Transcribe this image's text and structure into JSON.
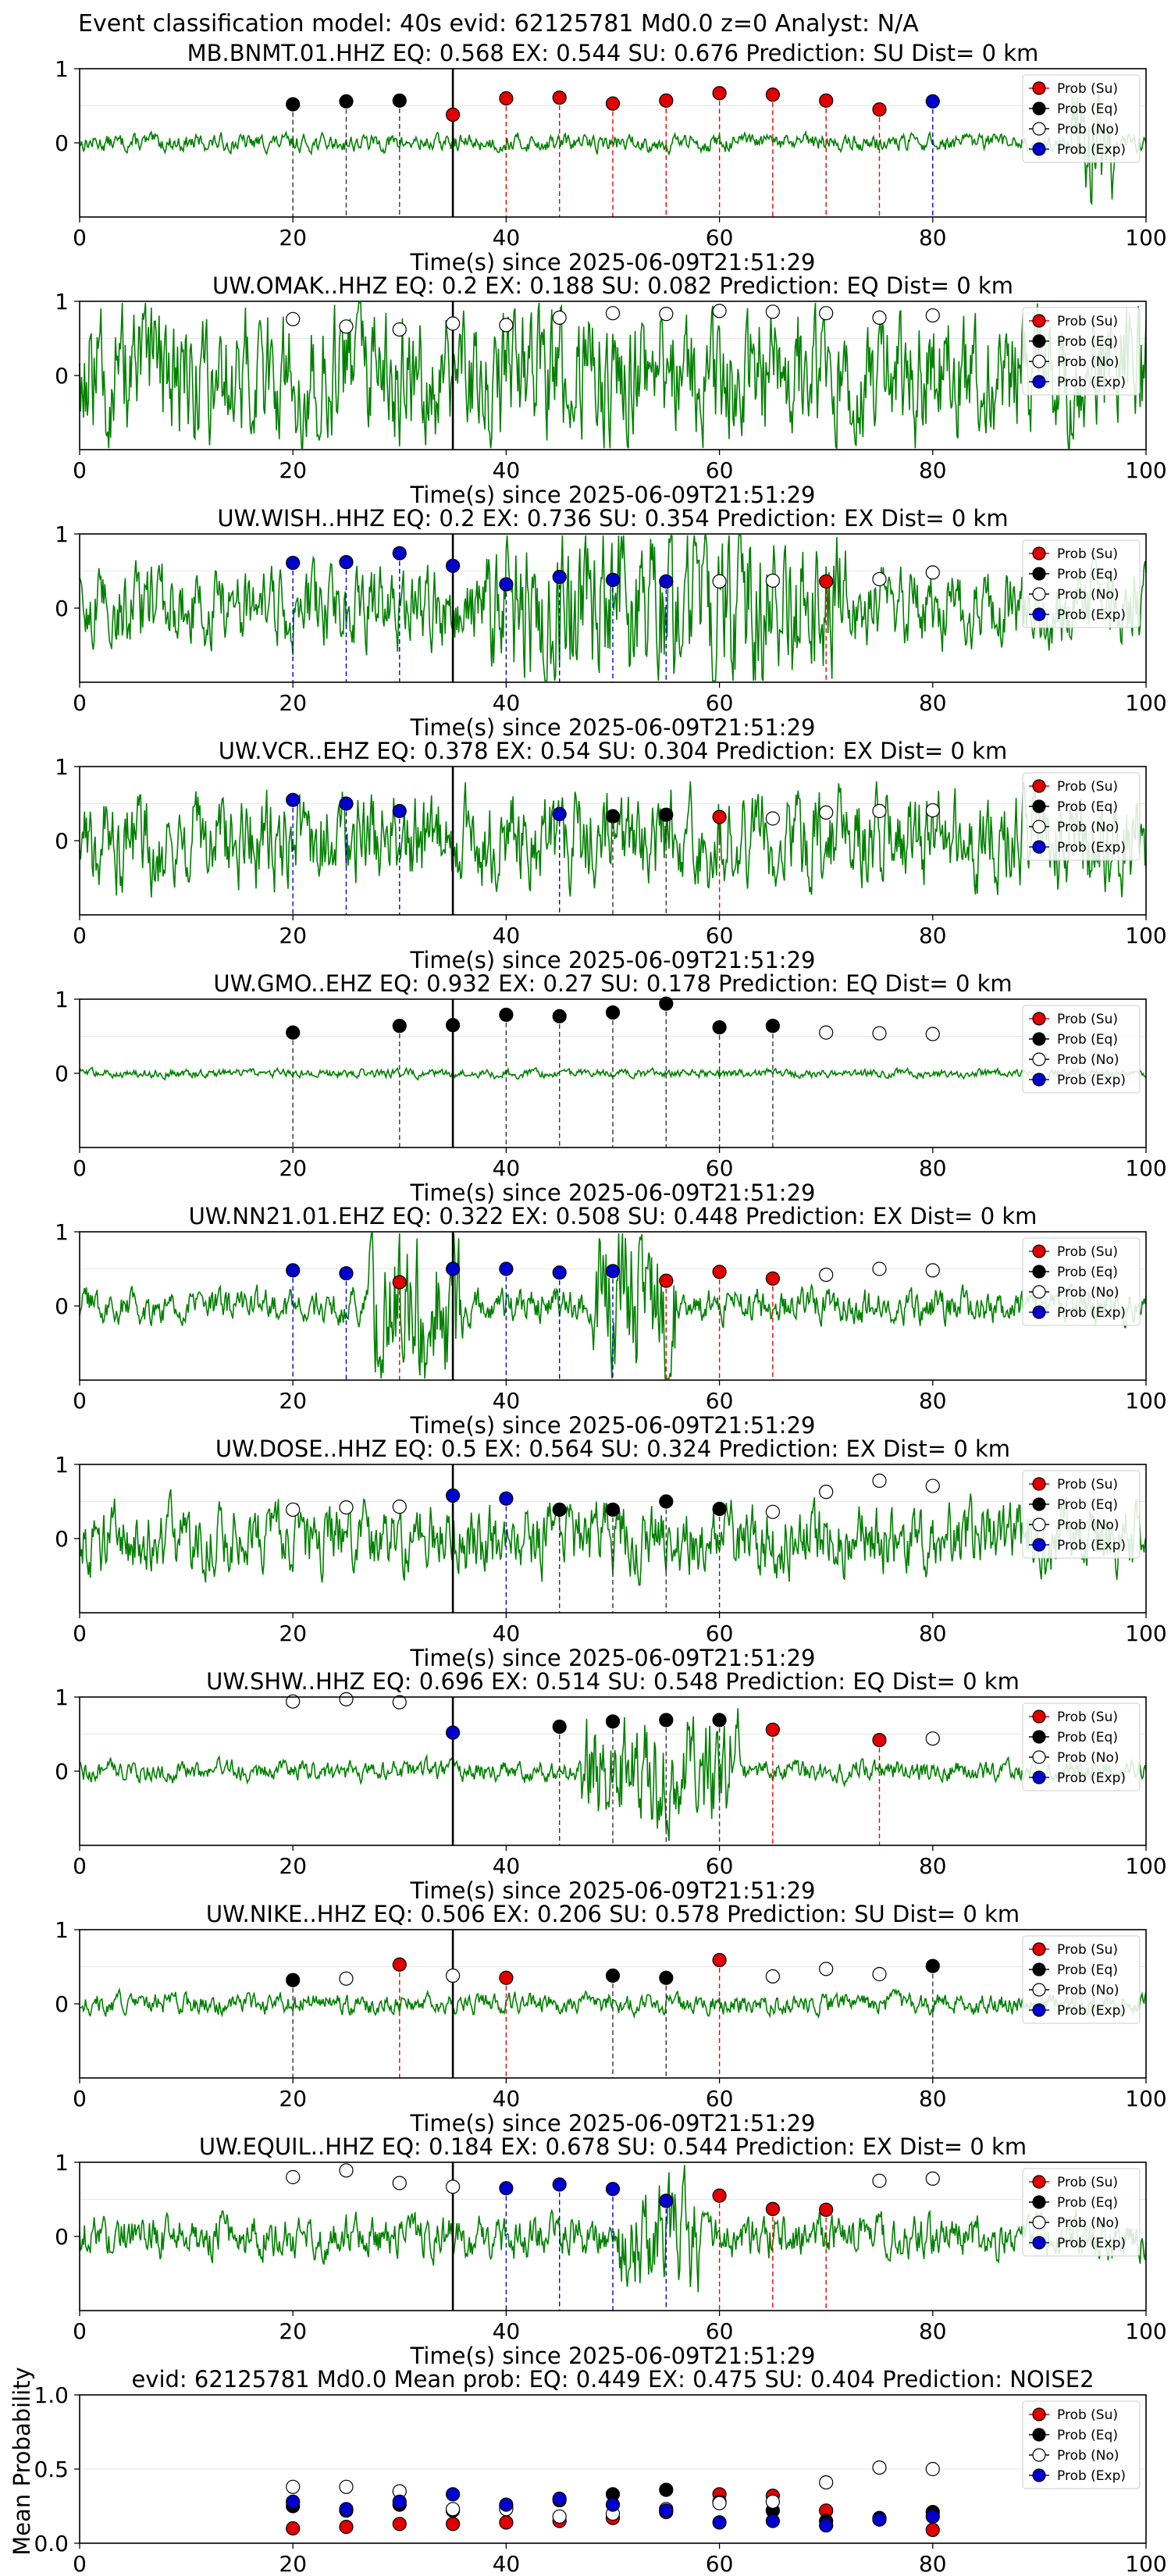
{
  "figure": {
    "suptitle": "Event classification model: 40s evid: 62125781 Md0.0 z=0 Analyst: N/A"
  },
  "legend": [
    "Prob (Su)",
    "Prob (Eq)",
    "Prob (No)",
    "Prob (Exp)"
  ],
  "colors": {
    "su": "#e00000",
    "eq": "#000000",
    "no": "#ffffff",
    "exp": "#0000cc",
    "waveform": "#008000",
    "grid": "#e6e6e6"
  },
  "chart_data": [
    {
      "type": "line",
      "station": "MB.BNMT.01.HHZ",
      "title": "MB.BNMT.01.HHZ   EQ: 0.568  EX: 0.544  SU: 0.676   Prediction: SU    Dist= 0 km",
      "xlabel": "Time(s) since 2025-06-09T21:51:29",
      "xlim": [
        0,
        100
      ],
      "ylim": [
        -1,
        1
      ],
      "xticks": [
        0,
        20,
        40,
        60,
        80,
        100
      ],
      "yticks": [
        0,
        1
      ],
      "amplitude": 0.1,
      "event_line_x": 35,
      "windows": [
        {
          "x": 20,
          "p": 0.52,
          "cls": "eq"
        },
        {
          "x": 25,
          "p": 0.56,
          "cls": "eq"
        },
        {
          "x": 30,
          "p": 0.57,
          "cls": "eq"
        },
        {
          "x": 35,
          "p": 0.38,
          "cls": "su"
        },
        {
          "x": 40,
          "p": 0.6,
          "cls": "su"
        },
        {
          "x": 45,
          "p": 0.61,
          "cls": "su"
        },
        {
          "x": 50,
          "p": 0.53,
          "cls": "su"
        },
        {
          "x": 55,
          "p": 0.57,
          "cls": "su"
        },
        {
          "x": 60,
          "p": 0.67,
          "cls": "su"
        },
        {
          "x": 65,
          "p": 0.65,
          "cls": "su"
        },
        {
          "x": 70,
          "p": 0.57,
          "cls": "su"
        },
        {
          "x": 75,
          "p": 0.45,
          "cls": "su"
        },
        {
          "x": 80,
          "p": 0.56,
          "cls": "exp"
        }
      ]
    },
    {
      "type": "line",
      "station": "UW.OMAK..HHZ",
      "title": "UW.OMAK..HHZ   EQ: 0.2  EX: 0.188  SU: 0.082   Prediction: EQ    Dist= 0 km",
      "xlabel": "Time(s) since 2025-06-09T21:51:29",
      "xlim": [
        0,
        100
      ],
      "ylim": [
        -1,
        1
      ],
      "xticks": [
        0,
        20,
        40,
        60,
        80,
        100
      ],
      "yticks": [
        0,
        1
      ],
      "amplitude": 0.75,
      "event_line_x": 35,
      "windows": [
        {
          "x": 20,
          "p": 0.76,
          "cls": "no"
        },
        {
          "x": 25,
          "p": 0.66,
          "cls": "no"
        },
        {
          "x": 30,
          "p": 0.62,
          "cls": "no"
        },
        {
          "x": 35,
          "p": 0.7,
          "cls": "no"
        },
        {
          "x": 40,
          "p": 0.68,
          "cls": "no"
        },
        {
          "x": 45,
          "p": 0.78,
          "cls": "no"
        },
        {
          "x": 50,
          "p": 0.84,
          "cls": "no"
        },
        {
          "x": 55,
          "p": 0.83,
          "cls": "no"
        },
        {
          "x": 60,
          "p": 0.87,
          "cls": "no"
        },
        {
          "x": 65,
          "p": 0.86,
          "cls": "no"
        },
        {
          "x": 70,
          "p": 0.84,
          "cls": "no"
        },
        {
          "x": 75,
          "p": 0.78,
          "cls": "no"
        },
        {
          "x": 80,
          "p": 0.81,
          "cls": "no"
        }
      ]
    },
    {
      "type": "line",
      "station": "UW.WISH..HHZ",
      "title": "UW.WISH..HHZ   EQ: 0.2  EX: 0.736  SU: 0.354   Prediction: EX    Dist= 0 km",
      "xlabel": "Time(s) since 2025-06-09T21:51:29",
      "xlim": [
        0,
        100
      ],
      "ylim": [
        -1,
        1
      ],
      "xticks": [
        0,
        20,
        40,
        60,
        80,
        100
      ],
      "yticks": [
        0,
        1
      ],
      "amplitude": 0.45,
      "event_line_x": 35,
      "windows": [
        {
          "x": 20,
          "p": 0.61,
          "cls": "exp"
        },
        {
          "x": 25,
          "p": 0.62,
          "cls": "exp"
        },
        {
          "x": 30,
          "p": 0.74,
          "cls": "exp"
        },
        {
          "x": 35,
          "p": 0.57,
          "cls": "exp"
        },
        {
          "x": 40,
          "p": 0.32,
          "cls": "exp"
        },
        {
          "x": 45,
          "p": 0.42,
          "cls": "exp"
        },
        {
          "x": 50,
          "p": 0.38,
          "cls": "exp"
        },
        {
          "x": 55,
          "p": 0.36,
          "cls": "exp"
        },
        {
          "x": 60,
          "p": 0.36,
          "cls": "no"
        },
        {
          "x": 65,
          "p": 0.37,
          "cls": "no"
        },
        {
          "x": 70,
          "p": 0.36,
          "cls": "su"
        },
        {
          "x": 75,
          "p": 0.39,
          "cls": "no"
        },
        {
          "x": 80,
          "p": 0.48,
          "cls": "no"
        }
      ]
    },
    {
      "type": "line",
      "station": "UW.VCR..EHZ",
      "title": "UW.VCR..EHZ   EQ: 0.378  EX: 0.54  SU: 0.304   Prediction: EX    Dist= 0 km",
      "xlabel": "Time(s) since 2025-06-09T21:51:29",
      "xlim": [
        0,
        100
      ],
      "ylim": [
        -1,
        1
      ],
      "xticks": [
        0,
        20,
        40,
        60,
        80,
        100
      ],
      "yticks": [
        0,
        1
      ],
      "amplitude": 0.55,
      "event_line_x": 35,
      "windows": [
        {
          "x": 20,
          "p": 0.55,
          "cls": "exp"
        },
        {
          "x": 25,
          "p": 0.5,
          "cls": "exp"
        },
        {
          "x": 30,
          "p": 0.4,
          "cls": "exp"
        },
        {
          "x": 45,
          "p": 0.36,
          "cls": "exp"
        },
        {
          "x": 50,
          "p": 0.33,
          "cls": "eq"
        },
        {
          "x": 55,
          "p": 0.35,
          "cls": "eq"
        },
        {
          "x": 60,
          "p": 0.32,
          "cls": "su"
        },
        {
          "x": 65,
          "p": 0.3,
          "cls": "no"
        },
        {
          "x": 70,
          "p": 0.38,
          "cls": "no"
        },
        {
          "x": 75,
          "p": 0.4,
          "cls": "no"
        },
        {
          "x": 80,
          "p": 0.41,
          "cls": "no"
        }
      ]
    },
    {
      "type": "line",
      "station": "UW.GMO..EHZ",
      "title": "UW.GMO..EHZ   EQ: 0.932  EX: 0.27  SU: 0.178   Prediction: EQ    Dist= 0 km",
      "xlabel": "Time(s) since 2025-06-09T21:51:29",
      "xlim": [
        0,
        100
      ],
      "ylim": [
        -1,
        1
      ],
      "xticks": [
        0,
        20,
        40,
        60,
        80,
        100
      ],
      "yticks": [
        0,
        1
      ],
      "amplitude": 0.05,
      "event_line_x": 35,
      "windows": [
        {
          "x": 20,
          "p": 0.55,
          "cls": "eq"
        },
        {
          "x": 30,
          "p": 0.64,
          "cls": "eq"
        },
        {
          "x": 35,
          "p": 0.65,
          "cls": "eq"
        },
        {
          "x": 40,
          "p": 0.79,
          "cls": "eq"
        },
        {
          "x": 45,
          "p": 0.77,
          "cls": "eq"
        },
        {
          "x": 50,
          "p": 0.82,
          "cls": "eq"
        },
        {
          "x": 55,
          "p": 0.94,
          "cls": "eq"
        },
        {
          "x": 60,
          "p": 0.62,
          "cls": "eq"
        },
        {
          "x": 65,
          "p": 0.64,
          "cls": "eq"
        },
        {
          "x": 70,
          "p": 0.55,
          "cls": "no"
        },
        {
          "x": 75,
          "p": 0.54,
          "cls": "no"
        },
        {
          "x": 80,
          "p": 0.53,
          "cls": "no"
        }
      ]
    },
    {
      "type": "line",
      "station": "UW.NN21.01.EHZ",
      "title": "UW.NN21.01.EHZ   EQ: 0.322  EX: 0.508  SU: 0.448   Prediction: EX    Dist= 0 km",
      "xlabel": "Time(s) since 2025-06-09T21:51:29",
      "xlim": [
        0,
        100
      ],
      "ylim": [
        -1,
        1
      ],
      "xticks": [
        0,
        20,
        40,
        60,
        80,
        100
      ],
      "yticks": [
        0,
        1
      ],
      "amplitude": 0.2,
      "event_line_x": 35,
      "windows": [
        {
          "x": 20,
          "p": 0.48,
          "cls": "exp"
        },
        {
          "x": 25,
          "p": 0.44,
          "cls": "exp"
        },
        {
          "x": 30,
          "p": 0.32,
          "cls": "su"
        },
        {
          "x": 35,
          "p": 0.5,
          "cls": "exp"
        },
        {
          "x": 40,
          "p": 0.5,
          "cls": "exp"
        },
        {
          "x": 45,
          "p": 0.45,
          "cls": "exp"
        },
        {
          "x": 50,
          "p": 0.47,
          "cls": "exp"
        },
        {
          "x": 55,
          "p": 0.34,
          "cls": "su"
        },
        {
          "x": 60,
          "p": 0.46,
          "cls": "su"
        },
        {
          "x": 65,
          "p": 0.37,
          "cls": "su"
        },
        {
          "x": 70,
          "p": 0.42,
          "cls": "no"
        },
        {
          "x": 75,
          "p": 0.5,
          "cls": "no"
        },
        {
          "x": 80,
          "p": 0.48,
          "cls": "no"
        }
      ]
    },
    {
      "type": "line",
      "station": "UW.DOSE..HHZ",
      "title": "UW.DOSE..HHZ   EQ: 0.5  EX: 0.564  SU: 0.324   Prediction: EX    Dist= 0 km",
      "xlabel": "Time(s) since 2025-06-09T21:51:29",
      "xlim": [
        0,
        100
      ],
      "ylim": [
        -1,
        1
      ],
      "xticks": [
        0,
        20,
        40,
        60,
        80,
        100
      ],
      "yticks": [
        0,
        1
      ],
      "amplitude": 0.4,
      "event_line_x": 35,
      "windows": [
        {
          "x": 20,
          "p": 0.39,
          "cls": "no"
        },
        {
          "x": 25,
          "p": 0.42,
          "cls": "no"
        },
        {
          "x": 30,
          "p": 0.43,
          "cls": "no"
        },
        {
          "x": 35,
          "p": 0.58,
          "cls": "exp"
        },
        {
          "x": 40,
          "p": 0.54,
          "cls": "exp"
        },
        {
          "x": 45,
          "p": 0.39,
          "cls": "eq"
        },
        {
          "x": 50,
          "p": 0.39,
          "cls": "eq"
        },
        {
          "x": 55,
          "p": 0.5,
          "cls": "eq"
        },
        {
          "x": 60,
          "p": 0.4,
          "cls": "eq"
        },
        {
          "x": 65,
          "p": 0.36,
          "cls": "no"
        },
        {
          "x": 70,
          "p": 0.63,
          "cls": "no"
        },
        {
          "x": 75,
          "p": 0.78,
          "cls": "no"
        },
        {
          "x": 80,
          "p": 0.71,
          "cls": "no"
        }
      ]
    },
    {
      "type": "line",
      "station": "UW.SHW..HHZ",
      "title": "UW.SHW..HHZ   EQ: 0.696  EX: 0.514  SU: 0.548   Prediction: EQ    Dist= 0 km",
      "xlabel": "Time(s) since 2025-06-09T21:51:29",
      "xlim": [
        0,
        100
      ],
      "ylim": [
        -1,
        1
      ],
      "xticks": [
        0,
        20,
        40,
        60,
        80,
        100
      ],
      "yticks": [
        0,
        1
      ],
      "amplitude": 0.12,
      "event_line_x": 35,
      "windows": [
        {
          "x": 20,
          "p": 0.94,
          "cls": "no"
        },
        {
          "x": 25,
          "p": 0.97,
          "cls": "no"
        },
        {
          "x": 30,
          "p": 0.93,
          "cls": "no"
        },
        {
          "x": 35,
          "p": 0.52,
          "cls": "exp"
        },
        {
          "x": 45,
          "p": 0.6,
          "cls": "eq"
        },
        {
          "x": 50,
          "p": 0.67,
          "cls": "eq"
        },
        {
          "x": 55,
          "p": 0.69,
          "cls": "eq"
        },
        {
          "x": 60,
          "p": 0.69,
          "cls": "eq"
        },
        {
          "x": 65,
          "p": 0.56,
          "cls": "su"
        },
        {
          "x": 75,
          "p": 0.42,
          "cls": "su"
        },
        {
          "x": 80,
          "p": 0.44,
          "cls": "no"
        }
      ]
    },
    {
      "type": "line",
      "station": "UW.NIKE..HHZ",
      "title": "UW.NIKE..HHZ   EQ: 0.506  EX: 0.206  SU: 0.578   Prediction: SU    Dist= 0 km",
      "xlabel": "Time(s) since 2025-06-09T21:51:29",
      "xlim": [
        0,
        100
      ],
      "ylim": [
        -1,
        1
      ],
      "xticks": [
        0,
        20,
        40,
        60,
        80,
        100
      ],
      "yticks": [
        0,
        1
      ],
      "amplitude": 0.12,
      "event_line_x": 35,
      "windows": [
        {
          "x": 20,
          "p": 0.32,
          "cls": "eq"
        },
        {
          "x": 25,
          "p": 0.34,
          "cls": "no"
        },
        {
          "x": 30,
          "p": 0.53,
          "cls": "su"
        },
        {
          "x": 35,
          "p": 0.38,
          "cls": "no"
        },
        {
          "x": 40,
          "p": 0.35,
          "cls": "su"
        },
        {
          "x": 50,
          "p": 0.38,
          "cls": "eq"
        },
        {
          "x": 55,
          "p": 0.35,
          "cls": "eq"
        },
        {
          "x": 60,
          "p": 0.59,
          "cls": "su"
        },
        {
          "x": 65,
          "p": 0.37,
          "cls": "no"
        },
        {
          "x": 70,
          "p": 0.47,
          "cls": "no"
        },
        {
          "x": 75,
          "p": 0.4,
          "cls": "no"
        },
        {
          "x": 80,
          "p": 0.51,
          "cls": "eq"
        }
      ]
    },
    {
      "type": "line",
      "station": "UW.EQUIL..HHZ",
      "title": "UW.EQUIL..HHZ   EQ: 0.184  EX: 0.678  SU: 0.544   Prediction: EX    Dist= 0 km",
      "xlabel": "Time(s) since 2025-06-09T21:51:29",
      "xlim": [
        0,
        100
      ],
      "ylim": [
        -1,
        1
      ],
      "xticks": [
        0,
        20,
        40,
        60,
        80,
        100
      ],
      "yticks": [
        0,
        1
      ],
      "amplitude": 0.25,
      "event_line_x": 35,
      "windows": [
        {
          "x": 20,
          "p": 0.8,
          "cls": "no"
        },
        {
          "x": 25,
          "p": 0.89,
          "cls": "no"
        },
        {
          "x": 30,
          "p": 0.72,
          "cls": "no"
        },
        {
          "x": 35,
          "p": 0.67,
          "cls": "no"
        },
        {
          "x": 40,
          "p": 0.65,
          "cls": "exp"
        },
        {
          "x": 45,
          "p": 0.7,
          "cls": "exp"
        },
        {
          "x": 50,
          "p": 0.64,
          "cls": "exp"
        },
        {
          "x": 55,
          "p": 0.48,
          "cls": "exp"
        },
        {
          "x": 60,
          "p": 0.55,
          "cls": "su"
        },
        {
          "x": 65,
          "p": 0.37,
          "cls": "su"
        },
        {
          "x": 70,
          "p": 0.36,
          "cls": "su"
        },
        {
          "x": 75,
          "p": 0.75,
          "cls": "no"
        },
        {
          "x": 80,
          "p": 0.78,
          "cls": "no"
        }
      ]
    },
    {
      "type": "scatter",
      "title": "evid: 62125781  Md0.0   Mean prob:   EQ: 0.449  EX: 0.475  SU: 0.404   Prediction: NOISE2",
      "ylabel": "Mean Probability",
      "xlim": [
        0,
        100
      ],
      "ylim": [
        0,
        1
      ],
      "xticks": [
        0,
        20,
        40,
        60,
        80,
        100
      ],
      "yticks": [
        0.0,
        0.5,
        1.0
      ],
      "ytick_labels": [
        "0.0",
        "0.5",
        "1.0"
      ],
      "x": [
        20,
        25,
        30,
        35,
        40,
        45,
        50,
        55,
        60,
        65,
        70,
        75,
        80
      ],
      "series": [
        {
          "name": "Prob (Su)",
          "cls": "su",
          "values": [
            0.1,
            0.11,
            0.13,
            0.13,
            0.14,
            0.15,
            0.17,
            0.21,
            0.33,
            0.32,
            0.22,
            0.16,
            0.09
          ]
        },
        {
          "name": "Prob (Eq)",
          "cls": "eq",
          "values": [
            0.25,
            0.22,
            0.26,
            0.22,
            0.25,
            0.29,
            0.33,
            0.36,
            0.28,
            0.22,
            0.15,
            0.17,
            0.21
          ]
        },
        {
          "name": "Prob (No)",
          "cls": "no",
          "values": [
            0.38,
            0.38,
            0.35,
            0.23,
            0.23,
            0.18,
            0.2,
            0.23,
            0.27,
            0.28,
            0.41,
            0.51,
            0.5
          ]
        },
        {
          "name": "Prob (Exp)",
          "cls": "exp",
          "values": [
            0.28,
            0.23,
            0.28,
            0.33,
            0.26,
            0.3,
            0.26,
            0.22,
            0.14,
            0.15,
            0.12,
            0.16,
            0.18
          ]
        }
      ]
    }
  ]
}
